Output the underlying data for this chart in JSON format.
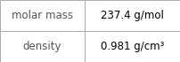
{
  "rows": [
    {
      "label": "molar mass",
      "value": "237.4 g/mol",
      "superscript": null
    },
    {
      "label": "density",
      "value": "0.981 g/cm³",
      "superscript": null
    }
  ],
  "bg_color": "#ffffff",
  "border_color": "#aaaaaa",
  "label_color": "#555555",
  "value_color": "#000000",
  "font_size_label": 8.5,
  "font_size_value": 8.5,
  "col_split": 0.47,
  "figwidth": 2.02,
  "figheight": 0.7,
  "dpi": 100
}
